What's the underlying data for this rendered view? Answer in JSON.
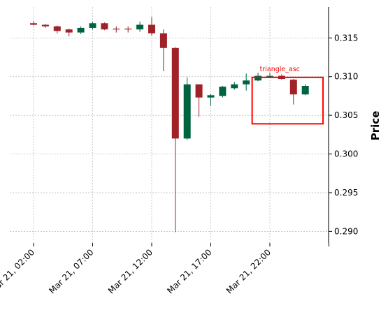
{
  "chart_data": {
    "type": "candlestick",
    "ylabel": "Price",
    "ylim": [
      0.2885,
      0.319
    ],
    "y_ticks": [
      0.29,
      0.295,
      0.3,
      0.305,
      0.31,
      0.315
    ],
    "y_tick_labels": [
      "0.290",
      "0.295",
      "0.300",
      "0.305",
      "0.310",
      "0.315"
    ],
    "x_ticks": [
      {
        "index": 0,
        "label": "Mar 21, 02:00"
      },
      {
        "index": 5,
        "label": "Mar 21, 07:00"
      },
      {
        "index": 10,
        "label": "Mar 21, 12:00"
      },
      {
        "index": 15,
        "label": "Mar 21, 17:00"
      },
      {
        "index": 20,
        "label": "Mar 21, 22:00"
      },
      {
        "index": 25,
        "label": ""
      }
    ],
    "grid": true,
    "up_color": "#006340",
    "down_color": "#a02128",
    "candles": [
      {
        "o": 0.3169,
        "h": 0.3172,
        "l": 0.3166,
        "c": 0.3167
      },
      {
        "o": 0.3167,
        "h": 0.3168,
        "l": 0.3163,
        "c": 0.3165
      },
      {
        "o": 0.3165,
        "h": 0.3166,
        "l": 0.3156,
        "c": 0.3159
      },
      {
        "o": 0.3161,
        "h": 0.3162,
        "l": 0.3152,
        "c": 0.3157
      },
      {
        "o": 0.3157,
        "h": 0.3165,
        "l": 0.3155,
        "c": 0.3163
      },
      {
        "o": 0.3163,
        "h": 0.3171,
        "l": 0.3161,
        "c": 0.3169
      },
      {
        "o": 0.3169,
        "h": 0.317,
        "l": 0.316,
        "c": 0.3161
      },
      {
        "o": 0.3162,
        "h": 0.3165,
        "l": 0.3157,
        "c": 0.3161
      },
      {
        "o": 0.3162,
        "h": 0.3165,
        "l": 0.3157,
        "c": 0.3161
      },
      {
        "o": 0.3161,
        "h": 0.3171,
        "l": 0.3158,
        "c": 0.3167
      },
      {
        "o": 0.3167,
        "h": 0.3177,
        "l": 0.3153,
        "c": 0.3156
      },
      {
        "o": 0.3156,
        "h": 0.3161,
        "l": 0.3107,
        "c": 0.3137
      },
      {
        "o": 0.3137,
        "h": 0.3138,
        "l": 0.2899,
        "c": 0.302
      },
      {
        "o": 0.302,
        "h": 0.3099,
        "l": 0.3018,
        "c": 0.309
      },
      {
        "o": 0.309,
        "h": 0.309,
        "l": 0.3048,
        "c": 0.3073
      },
      {
        "o": 0.3073,
        "h": 0.3078,
        "l": 0.3062,
        "c": 0.3076
      },
      {
        "o": 0.3075,
        "h": 0.3088,
        "l": 0.3073,
        "c": 0.3087
      },
      {
        "o": 0.3085,
        "h": 0.3093,
        "l": 0.3083,
        "c": 0.309
      },
      {
        "o": 0.309,
        "h": 0.3104,
        "l": 0.3082,
        "c": 0.3095
      },
      {
        "o": 0.3095,
        "h": 0.3105,
        "l": 0.3094,
        "c": 0.3101
      },
      {
        "o": 0.3101,
        "h": 0.3105,
        "l": 0.3098,
        "c": 0.3101
      },
      {
        "o": 0.3101,
        "h": 0.3103,
        "l": 0.3096,
        "c": 0.3097
      },
      {
        "o": 0.3096,
        "h": 0.3097,
        "l": 0.3064,
        "c": 0.3077
      },
      {
        "o": 0.3077,
        "h": 0.309,
        "l": 0.3076,
        "c": 0.3088
      }
    ],
    "annotations": [
      {
        "label": "triangle_asc",
        "color": "#ff0000",
        "x_from": 18.5,
        "x_to": 24.5,
        "y_from": 0.3039,
        "y_to": 0.3099
      }
    ]
  }
}
